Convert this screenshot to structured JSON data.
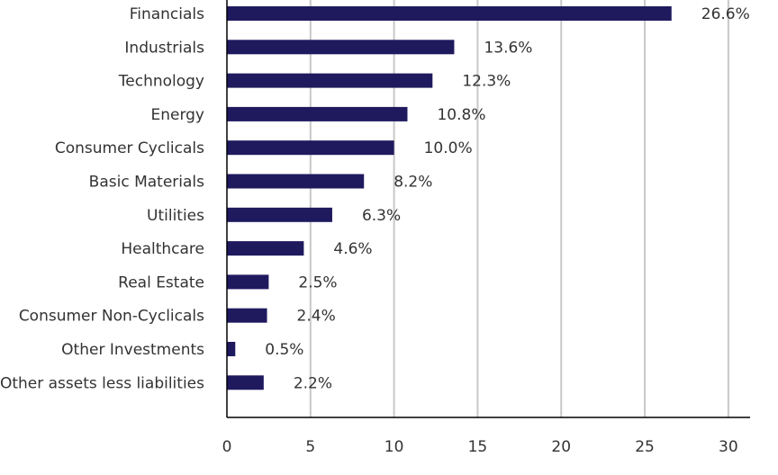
{
  "chart_data": {
    "type": "bar",
    "orientation": "horizontal",
    "title": "",
    "xlabel": "",
    "ylabel": "",
    "categories": [
      "Financials",
      "Industrials",
      "Technology",
      "Energy",
      "Consumer Cyclicals",
      "Basic Materials",
      "Utilities",
      "Healthcare",
      "Real Estate",
      "Consumer Non-Cyclicals",
      "Other Investments",
      "Other assets less liabilities"
    ],
    "values": [
      26.6,
      13.6,
      12.3,
      10.8,
      10.0,
      8.2,
      6.3,
      4.6,
      2.5,
      2.4,
      0.5,
      2.2
    ],
    "value_labels": [
      "26.6%",
      "13.6%",
      "12.3%",
      "10.8%",
      "10.0%",
      "8.2%",
      "6.3%",
      "4.6%",
      "2.5%",
      "2.4%",
      "0.5%",
      "2.2%"
    ],
    "xlim": [
      0,
      31.3
    ],
    "xticks": [
      0,
      5,
      10,
      15,
      20,
      25,
      30
    ],
    "xtick_labels": [
      "0",
      "5",
      "10",
      "15",
      "20",
      "25",
      "30"
    ],
    "grid": "vertical",
    "legend": "none",
    "bar_color": "#1f1a5e",
    "grid_color": "#c8c8c8"
  }
}
